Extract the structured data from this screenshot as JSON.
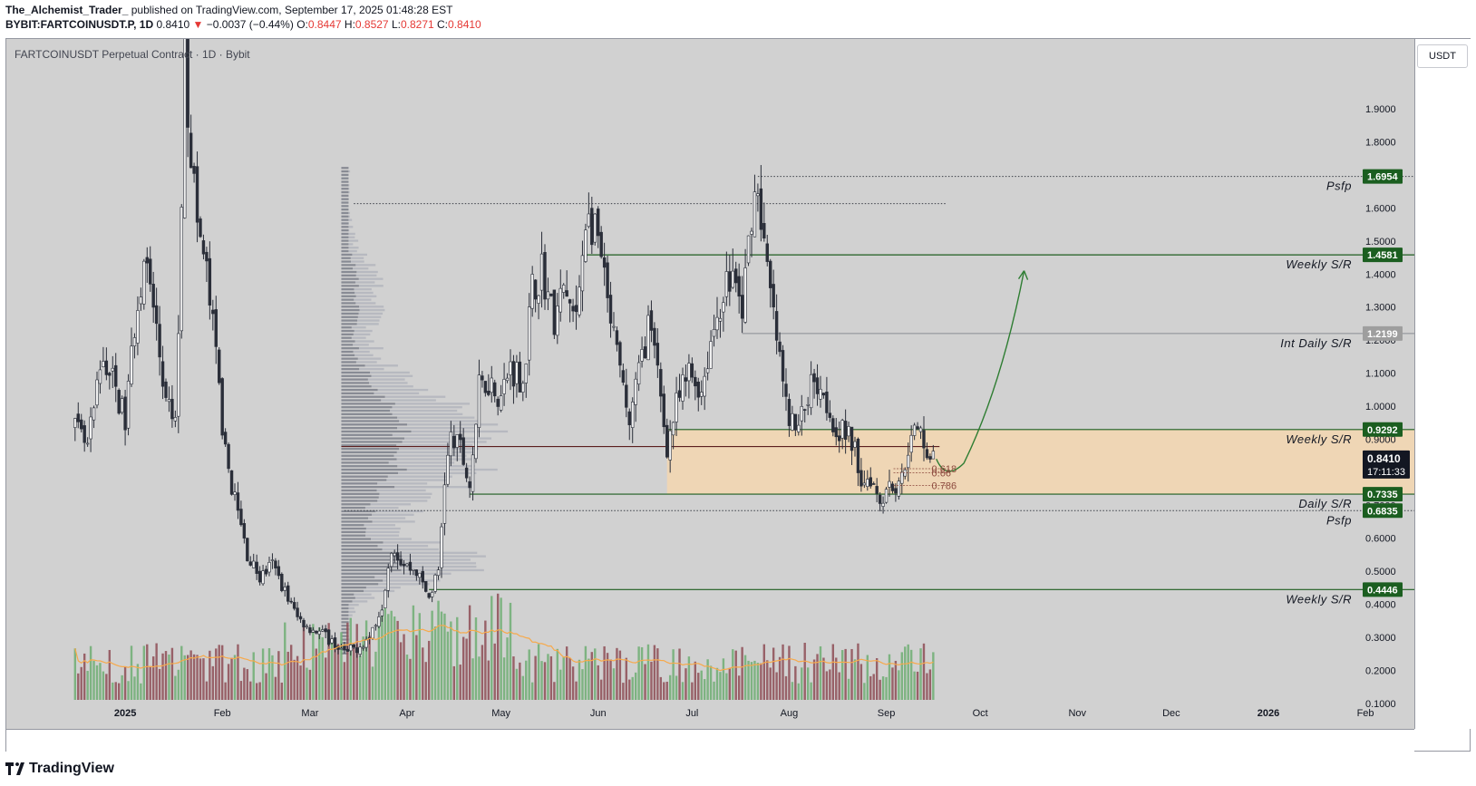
{
  "header": {
    "author": "The_Alchemist_Trader_",
    "published": "published on TradingView.com, September 17, 2025 01:48:28 EST",
    "symbol_line": "BYBIT:FARTCOINUSDT.P, 1D",
    "last": "0.8410",
    "change": "−0.0037 (−0.44%)",
    "o_label": "O:",
    "o": "0.8447",
    "h_label": "H:",
    "h": "0.8527",
    "l_label": "L:",
    "l": "0.8271",
    "c_label": "C:",
    "c": "0.8410"
  },
  "legend": {
    "title": "FARTCOINUSDT Perpetual Contract · 1D · Bybit"
  },
  "axis": {
    "currency_button": "USDT"
  },
  "footer": {
    "brand": "TradingView"
  },
  "colors": {
    "background": "#d1d1d1",
    "candle": "#2a2e39",
    "green": "#1e5e20",
    "badge_green": "#1b5e20",
    "zone": "#f5d7b0",
    "volume_up": "#6fae73",
    "volume_down": "#8e4d56",
    "ma": "#f7a94a",
    "arrow": "#2e7d32",
    "gray_badge": "#9e9e9e"
  },
  "chart_data": {
    "type": "candlestick",
    "title": "FARTCOINUSDT Perpetual Contract · 1D · Bybit",
    "y_scale": "linear",
    "ylim": [
      0,
      2.05
    ],
    "y_ticks": [
      "0.1000",
      "0.2000",
      "0.3000",
      "0.4000",
      "0.5000",
      "0.6000",
      "0.7000",
      "0.8000",
      "0.9000",
      "1.0000",
      "1.1000",
      "1.2000",
      "1.3000",
      "1.4000",
      "1.5000",
      "1.6000",
      "1.7000",
      "1.8000",
      "1.9000"
    ],
    "x_ticks": [
      {
        "label": "2025",
        "date": "2025-01-01"
      },
      {
        "label": "Feb",
        "date": "2025-02-01"
      },
      {
        "label": "Mar",
        "date": "2025-03-01"
      },
      {
        "label": "Apr",
        "date": "2025-04-01"
      },
      {
        "label": "May",
        "date": "2025-05-01"
      },
      {
        "label": "Jun",
        "date": "2025-06-01"
      },
      {
        "label": "Jul",
        "date": "2025-07-01"
      },
      {
        "label": "Aug",
        "date": "2025-08-01"
      },
      {
        "label": "Sep",
        "date": "2025-09-01"
      },
      {
        "label": "Oct",
        "date": "2025-10-01"
      },
      {
        "label": "Nov",
        "date": "2025-11-01"
      },
      {
        "label": "Dec",
        "date": "2025-12-01"
      },
      {
        "label": "2026",
        "date": "2026-01-01"
      },
      {
        "label": "Feb",
        "date": "2026-02-01"
      }
    ],
    "price_path": [
      [
        "2024-12-16",
        0.93
      ],
      [
        "2024-12-20",
        0.87
      ],
      [
        "2024-12-25",
        1.15
      ],
      [
        "2024-12-29",
        1.05
      ],
      [
        "2025-01-01",
        0.95
      ],
      [
        "2025-01-04",
        1.25
      ],
      [
        "2025-01-07",
        1.45
      ],
      [
        "2025-01-10",
        1.3
      ],
      [
        "2025-01-14",
        1.0
      ],
      [
        "2025-01-17",
        0.95
      ],
      [
        "2025-01-19",
        1.55
      ],
      [
        "2025-01-20",
        2.2
      ],
      [
        "2025-01-21",
        1.9
      ],
      [
        "2025-01-24",
        1.55
      ],
      [
        "2025-01-27",
        1.4
      ],
      [
        "2025-01-30",
        1.15
      ],
      [
        "2025-02-02",
        0.85
      ],
      [
        "2025-02-05",
        0.72
      ],
      [
        "2025-02-09",
        0.55
      ],
      [
        "2025-02-13",
        0.48
      ],
      [
        "2025-02-17",
        0.52
      ],
      [
        "2025-02-21",
        0.44
      ],
      [
        "2025-02-25",
        0.36
      ],
      [
        "2025-03-01",
        0.33
      ],
      [
        "2025-03-05",
        0.31
      ],
      [
        "2025-03-09",
        0.28
      ],
      [
        "2025-03-12",
        0.25
      ],
      [
        "2025-03-16",
        0.27
      ],
      [
        "2025-03-20",
        0.3
      ],
      [
        "2025-03-24",
        0.4
      ],
      [
        "2025-03-27",
        0.58
      ],
      [
        "2025-03-31",
        0.52
      ],
      [
        "2025-04-04",
        0.5
      ],
      [
        "2025-04-08",
        0.42
      ],
      [
        "2025-04-11",
        0.5
      ],
      [
        "2025-04-13",
        0.78
      ],
      [
        "2025-04-15",
        0.9
      ],
      [
        "2025-04-18",
        0.87
      ],
      [
        "2025-04-21",
        0.76
      ],
      [
        "2025-04-24",
        1.05
      ],
      [
        "2025-04-27",
        1.08
      ],
      [
        "2025-05-01",
        1.03
      ],
      [
        "2025-05-04",
        1.12
      ],
      [
        "2025-05-08",
        1.08
      ],
      [
        "2025-05-11",
        1.35
      ],
      [
        "2025-05-14",
        1.42
      ],
      [
        "2025-05-18",
        1.25
      ],
      [
        "2025-05-21",
        1.35
      ],
      [
        "2025-05-25",
        1.25
      ],
      [
        "2025-05-28",
        1.58
      ],
      [
        "2025-06-01",
        1.5
      ],
      [
        "2025-06-04",
        1.3
      ],
      [
        "2025-06-08",
        1.1
      ],
      [
        "2025-06-11",
        0.95
      ],
      [
        "2025-06-14",
        1.1
      ],
      [
        "2025-06-17",
        1.25
      ],
      [
        "2025-06-20",
        1.1
      ],
      [
        "2025-06-23",
        0.88
      ],
      [
        "2025-06-26",
        1.0
      ],
      [
        "2025-06-30",
        1.1
      ],
      [
        "2025-07-04",
        1.05
      ],
      [
        "2025-07-07",
        1.2
      ],
      [
        "2025-07-11",
        1.35
      ],
      [
        "2025-07-14",
        1.4
      ],
      [
        "2025-07-17",
        1.28
      ],
      [
        "2025-07-20",
        1.6
      ],
      [
        "2025-07-22",
        1.67
      ],
      [
        "2025-07-25",
        1.4
      ],
      [
        "2025-07-28",
        1.2
      ],
      [
        "2025-07-31",
        1.0
      ],
      [
        "2025-08-03",
        0.92
      ],
      [
        "2025-08-06",
        1.0
      ],
      [
        "2025-08-09",
        1.1
      ],
      [
        "2025-08-12",
        1.05
      ],
      [
        "2025-08-15",
        0.95
      ],
      [
        "2025-08-18",
        0.92
      ],
      [
        "2025-08-21",
        0.9
      ],
      [
        "2025-08-24",
        0.78
      ],
      [
        "2025-08-27",
        0.79
      ],
      [
        "2025-08-30",
        0.72
      ],
      [
        "2025-09-02",
        0.77
      ],
      [
        "2025-09-05",
        0.75
      ],
      [
        "2025-09-08",
        0.88
      ],
      [
        "2025-09-11",
        0.93
      ],
      [
        "2025-09-13",
        0.9
      ],
      [
        "2025-09-15",
        0.84
      ],
      [
        "2025-09-17",
        0.841
      ]
    ],
    "volume": {
      "moving_average": true
    },
    "levels": [
      {
        "price": 1.6954,
        "badge": "1.6954",
        "label": "Psfp",
        "badge_color": "green",
        "style": "dotted",
        "from": "2025-07-22"
      },
      {
        "price": 1.6133,
        "badge": "",
        "label": "",
        "style": "dotted",
        "from": "2025-03-15",
        "to": "2025-09-20"
      },
      {
        "price": 1.4581,
        "badge": "1.4581",
        "label": "Weekly S/R",
        "badge_color": "green",
        "style": "solid",
        "from": "2025-05-28"
      },
      {
        "price": 1.2199,
        "badge": "1.2199",
        "label": "Int Daily S/R",
        "badge_color": "gray",
        "style": "thin",
        "from": "2025-07-17"
      },
      {
        "price": 0.9292,
        "badge": "0.9292",
        "label": "Weekly S/R",
        "badge_color": "green",
        "style": "solid",
        "from": "2025-06-23"
      },
      {
        "price": 0.7335,
        "badge": "0.7335",
        "label": "Daily S/R",
        "badge_color": "green",
        "style": "solid",
        "from": "2025-04-21"
      },
      {
        "price": 0.6835,
        "badge": "0.6835",
        "label": "Psfp",
        "badge_color": "green",
        "style": "dotted",
        "from": "2025-03-12"
      },
      {
        "price": 0.4446,
        "badge": "0.4446",
        "label": "Weekly S/R",
        "badge_color": "green",
        "style": "solid",
        "from": "2025-04-08"
      }
    ],
    "poc_price": 0.8777,
    "current_price": {
      "value": "0.8410",
      "countdown": "17:11:33",
      "price": 0.841
    },
    "zone": {
      "from": "2025-06-23",
      "top": 0.9292,
      "bottom": 0.7335
    },
    "fib_labels": [
      {
        "label": "0.618",
        "price": 0.8105
      },
      {
        "label": "0.66",
        "price": 0.7985
      },
      {
        "label": "0.786",
        "price": 0.7595
      }
    ],
    "projection_arrow": {
      "from": [
        "2025-09-17",
        0.84
      ],
      "via": [
        "2025-09-20",
        0.8
      ],
      "to": [
        "2025-10-15",
        1.41
      ]
    }
  }
}
